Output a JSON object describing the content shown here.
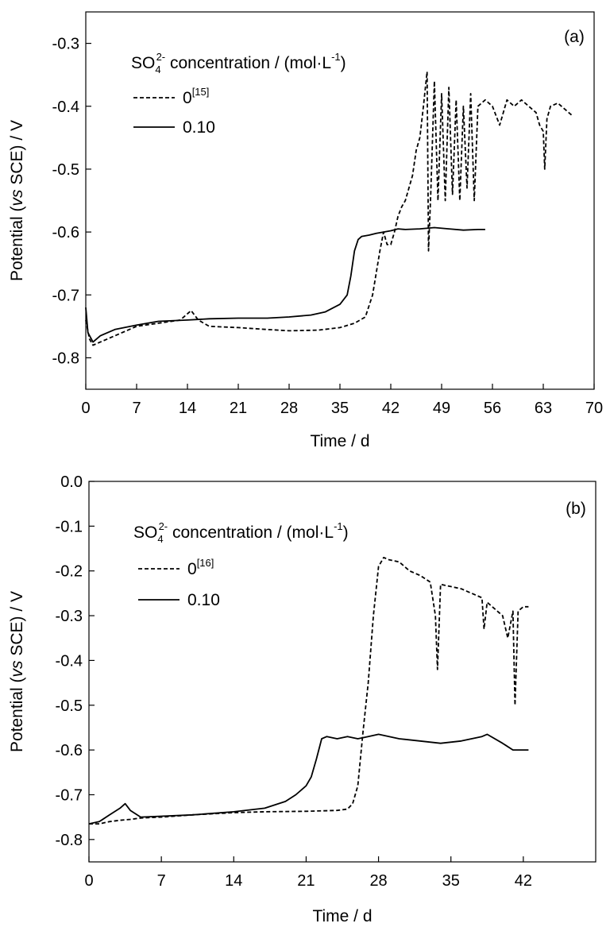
{
  "chart_data": [
    {
      "type": "line",
      "panel_label": "(a)",
      "xlabel": "Time / d",
      "ylabel": "Potential (vs SCE) / V",
      "ylabel_parts": [
        "Potential (",
        "vs",
        " SCE) / V"
      ],
      "xlim": [
        0,
        70
      ],
      "ylim": [
        -0.85,
        -0.25
      ],
      "x_ticks": [
        0,
        7,
        14,
        21,
        28,
        35,
        42,
        49,
        56,
        63,
        70
      ],
      "y_ticks": [
        -0.3,
        -0.4,
        -0.5,
        -0.6,
        -0.7,
        -0.8
      ],
      "legend_title": {
        "base": "SO",
        "sub": "4",
        "sup": "2-",
        "rest": " concentration / (mol·L",
        "rest_sup": "-1",
        "end": ")"
      },
      "legend_placement": "top-left",
      "series": [
        {
          "name": "0",
          "name_sup": "[15]",
          "style": "dashed",
          "x": [
            0,
            0.5,
            1,
            2,
            4,
            7,
            10,
            13,
            14.5,
            15.5,
            17,
            21,
            25,
            28,
            32,
            35,
            37,
            38.5,
            39.5,
            40.5,
            41,
            41.5,
            42,
            42.5,
            43,
            43.5,
            44,
            45,
            45.5,
            46,
            46.5,
            47,
            47.2,
            47.5,
            48,
            48.5,
            49,
            49.5,
            50,
            50.5,
            51,
            51.5,
            52,
            52.5,
            53,
            53.5,
            54,
            55,
            56,
            57,
            58,
            59,
            60,
            61,
            62,
            62.5,
            63,
            63.2,
            63.5,
            64,
            65,
            66,
            67
          ],
          "y": [
            -0.74,
            -0.77,
            -0.78,
            -0.775,
            -0.765,
            -0.75,
            -0.745,
            -0.74,
            -0.725,
            -0.74,
            -0.75,
            -0.752,
            -0.755,
            -0.757,
            -0.756,
            -0.752,
            -0.745,
            -0.735,
            -0.7,
            -0.63,
            -0.6,
            -0.62,
            -0.62,
            -0.6,
            -0.575,
            -0.56,
            -0.55,
            -0.51,
            -0.47,
            -0.45,
            -0.4,
            -0.345,
            -0.63,
            -0.54,
            -0.36,
            -0.55,
            -0.38,
            -0.55,
            -0.37,
            -0.54,
            -0.39,
            -0.55,
            -0.4,
            -0.53,
            -0.38,
            -0.55,
            -0.4,
            -0.39,
            -0.4,
            -0.43,
            -0.39,
            -0.4,
            -0.39,
            -0.4,
            -0.41,
            -0.43,
            -0.44,
            -0.5,
            -0.42,
            -0.4,
            -0.395,
            -0.405,
            -0.415
          ]
        },
        {
          "name": "0.10",
          "style": "solid",
          "x": [
            0,
            0.3,
            1,
            2,
            4,
            7,
            10,
            14,
            17,
            21,
            25,
            28,
            31,
            33,
            35,
            36,
            36.5,
            37,
            37.5,
            38,
            39,
            40,
            41,
            42,
            43,
            44,
            46,
            48,
            50,
            52,
            54,
            55
          ],
          "y": [
            -0.72,
            -0.76,
            -0.775,
            -0.765,
            -0.755,
            -0.748,
            -0.742,
            -0.74,
            -0.738,
            -0.737,
            -0.737,
            -0.735,
            -0.732,
            -0.727,
            -0.715,
            -0.7,
            -0.67,
            -0.63,
            -0.612,
            -0.607,
            -0.605,
            -0.602,
            -0.6,
            -0.598,
            -0.595,
            -0.596,
            -0.595,
            -0.593,
            -0.595,
            -0.597,
            -0.596,
            -0.596
          ]
        }
      ]
    },
    {
      "type": "line",
      "panel_label": "(b)",
      "xlabel": "Time / d",
      "ylabel": "Potential (vs SCE) / V",
      "ylabel_parts": [
        "Potential (",
        "vs",
        " SCE) / V"
      ],
      "xlim": [
        0,
        49
      ],
      "ylim": [
        -0.85,
        0.0
      ],
      "x_ticks": [
        0,
        7,
        14,
        21,
        28,
        35,
        42
      ],
      "y_ticks": [
        0.0,
        -0.1,
        -0.2,
        -0.3,
        -0.4,
        -0.5,
        -0.6,
        -0.7,
        -0.8
      ],
      "legend_title": {
        "base": "SO",
        "sub": "4",
        "sup": "2-",
        "rest": " concentration / (mol·L",
        "rest_sup": "-1",
        "end": ")"
      },
      "legend_placement": "top-left",
      "series": [
        {
          "name": "0",
          "name_sup": "[16]",
          "style": "dashed",
          "x": [
            0,
            1,
            2,
            3,
            4,
            5,
            7,
            10,
            14,
            17,
            21,
            24,
            25,
            25.5,
            26,
            26.5,
            27,
            27.5,
            28,
            28.5,
            29,
            30,
            31,
            32,
            33,
            33.5,
            33.7,
            34,
            35,
            36,
            37,
            38,
            38.2,
            38.5,
            39,
            40,
            40.5,
            41,
            41.2,
            41.5,
            42,
            42.5
          ],
          "y": [
            -0.765,
            -0.765,
            -0.76,
            -0.757,
            -0.755,
            -0.752,
            -0.75,
            -0.745,
            -0.74,
            -0.738,
            -0.737,
            -0.735,
            -0.732,
            -0.72,
            -0.68,
            -0.56,
            -0.45,
            -0.3,
            -0.19,
            -0.17,
            -0.175,
            -0.18,
            -0.2,
            -0.21,
            -0.225,
            -0.3,
            -0.42,
            -0.23,
            -0.235,
            -0.24,
            -0.25,
            -0.26,
            -0.33,
            -0.27,
            -0.28,
            -0.3,
            -0.35,
            -0.29,
            -0.5,
            -0.29,
            -0.28,
            -0.28
          ]
        },
        {
          "name": "0.10",
          "style": "solid",
          "x": [
            0,
            1,
            2,
            3,
            3.5,
            4,
            5,
            7,
            10,
            14,
            17,
            19,
            20,
            21,
            21.5,
            22,
            22.5,
            23,
            24,
            25,
            26,
            27,
            28,
            30,
            32,
            34,
            36,
            38,
            38.5,
            40,
            41,
            42,
            42.5
          ],
          "y": [
            -0.765,
            -0.76,
            -0.745,
            -0.73,
            -0.72,
            -0.735,
            -0.75,
            -0.748,
            -0.745,
            -0.738,
            -0.73,
            -0.715,
            -0.7,
            -0.68,
            -0.66,
            -0.62,
            -0.575,
            -0.57,
            -0.575,
            -0.57,
            -0.575,
            -0.57,
            -0.565,
            -0.575,
            -0.58,
            -0.585,
            -0.58,
            -0.57,
            -0.565,
            -0.585,
            -0.6,
            -0.6,
            -0.6
          ]
        }
      ]
    }
  ]
}
